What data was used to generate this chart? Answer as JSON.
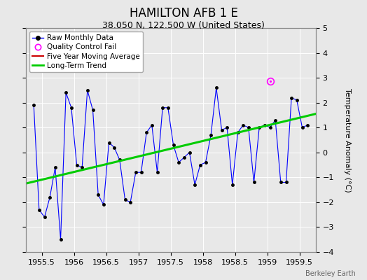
{
  "title": "HAMILTON AFB 1 E",
  "subtitle": "38.050 N, 122.500 W (United States)",
  "ylabel": "Temperature Anomaly (°C)",
  "watermark": "Berkeley Earth",
  "ylim": [
    -4,
    5
  ],
  "xlim": [
    1955.25,
    1959.75
  ],
  "xticks": [
    1955.5,
    1956.0,
    1956.5,
    1957.0,
    1957.5,
    1958.0,
    1958.5,
    1959.0,
    1959.5
  ],
  "yticks": [
    -4,
    -3,
    -2,
    -1,
    0,
    1,
    2,
    3,
    4,
    5
  ],
  "background_color": "#e8e8e8",
  "plot_bg_color": "#e8e8e8",
  "raw_x": [
    1955.375,
    1955.458,
    1955.542,
    1955.625,
    1955.708,
    1955.792,
    1955.875,
    1955.958,
    1956.042,
    1956.125,
    1956.208,
    1956.292,
    1956.375,
    1956.458,
    1956.542,
    1956.625,
    1956.708,
    1956.792,
    1956.875,
    1956.958,
    1957.042,
    1957.125,
    1957.208,
    1957.292,
    1957.375,
    1957.458,
    1957.542,
    1957.625,
    1957.708,
    1957.792,
    1957.875,
    1957.958,
    1958.042,
    1958.125,
    1958.208,
    1958.292,
    1958.375,
    1958.458,
    1958.542,
    1958.625,
    1958.708,
    1958.792,
    1958.875,
    1958.958,
    1959.042,
    1959.125,
    1959.208,
    1959.292,
    1959.375,
    1959.458,
    1959.542,
    1959.625
  ],
  "raw_y": [
    1.9,
    -2.3,
    -2.6,
    -1.8,
    -0.6,
    -3.5,
    2.4,
    1.8,
    -0.5,
    -0.6,
    2.5,
    1.7,
    -1.7,
    -2.1,
    0.4,
    0.2,
    -0.3,
    -1.9,
    -2.0,
    -0.8,
    -0.8,
    0.8,
    1.1,
    -0.8,
    1.8,
    1.8,
    0.3,
    -0.4,
    -0.2,
    0.0,
    -1.3,
    -0.5,
    -0.4,
    0.7,
    2.6,
    0.9,
    1.0,
    -1.3,
    0.8,
    1.1,
    1.0,
    -1.2,
    1.0,
    1.1,
    1.0,
    1.3,
    -1.2,
    -1.2,
    2.2,
    2.1,
    1.0,
    1.1
  ],
  "qc_fail_x": [
    1959.042
  ],
  "qc_fail_y": [
    2.85
  ],
  "trend_x": [
    1955.25,
    1959.75
  ],
  "trend_y": [
    -1.25,
    1.55
  ],
  "raw_line_color": "#0000ff",
  "dot_color": "#000000",
  "trend_color": "#00cc00",
  "qc_color": "#ff00ff",
  "moving_avg_color": "#cc0000",
  "grid_color": "#d0d0d0",
  "title_fontsize": 12,
  "subtitle_fontsize": 9,
  "tick_fontsize": 8,
  "ylabel_fontsize": 8
}
